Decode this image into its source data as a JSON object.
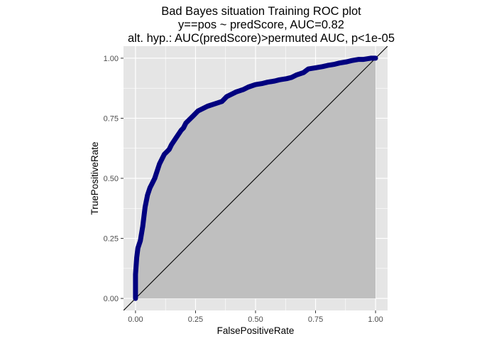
{
  "chart_data": {
    "type": "area",
    "title": "Bad Bayes situation Training ROC plot",
    "subtitle_lines": [
      "y==pos ~ predScore, AUC=0.82",
      "alt. hyp.: AUC(predScore)>permuted AUC, p<1e-05"
    ],
    "xlabel": "FalsePositiveRate",
    "ylabel": "TruePositiveRate",
    "xlim": [
      -0.05,
      1.05
    ],
    "ylim": [
      -0.05,
      1.05
    ],
    "x_ticks": [
      0,
      0.25,
      0.5,
      0.75,
      1
    ],
    "x_tick_labels": [
      "0.00",
      "0.25",
      "0.50",
      "0.75",
      "1.00"
    ],
    "y_ticks": [
      0,
      0.25,
      0.5,
      0.75,
      1
    ],
    "y_tick_labels": [
      "0.00",
      "0.25",
      "0.50",
      "0.75",
      "1.00"
    ],
    "grid": true,
    "diagonal_reference_line": true,
    "colors": {
      "panel": "#e5e5e5",
      "grid": "#ffffff",
      "area_fill": "#bfbfbf",
      "roc_line": "#00007f",
      "diagonal": "#000000"
    },
    "series": [
      {
        "x": [
          0,
          0,
          0.005,
          0.01,
          0.02,
          0.03,
          0.04,
          0.05,
          0.06,
          0.07,
          0.08,
          0.09,
          0.1,
          0.11,
          0.12,
          0.13,
          0.14,
          0.15,
          0.17,
          0.19,
          0.2,
          0.21,
          0.22,
          0.24,
          0.26,
          0.28,
          0.3,
          0.33,
          0.36,
          0.38,
          0.4,
          0.42,
          0.45,
          0.47,
          0.5,
          0.53,
          0.55,
          0.58,
          0.6,
          0.63,
          0.65,
          0.67,
          0.7,
          0.72,
          0.75,
          0.78,
          0.8,
          0.83,
          0.85,
          0.88,
          0.9,
          0.93,
          0.95,
          0.98,
          1.0
        ],
        "y": [
          0,
          0.1,
          0.17,
          0.21,
          0.24,
          0.3,
          0.38,
          0.43,
          0.46,
          0.48,
          0.5,
          0.53,
          0.56,
          0.58,
          0.6,
          0.61,
          0.62,
          0.64,
          0.67,
          0.7,
          0.71,
          0.73,
          0.74,
          0.76,
          0.78,
          0.79,
          0.8,
          0.81,
          0.82,
          0.84,
          0.85,
          0.86,
          0.87,
          0.88,
          0.89,
          0.895,
          0.9,
          0.905,
          0.91,
          0.915,
          0.92,
          0.93,
          0.94,
          0.955,
          0.96,
          0.965,
          0.97,
          0.975,
          0.98,
          0.985,
          0.99,
          0.995,
          0.995,
          1.0,
          1.0
        ]
      }
    ]
  }
}
